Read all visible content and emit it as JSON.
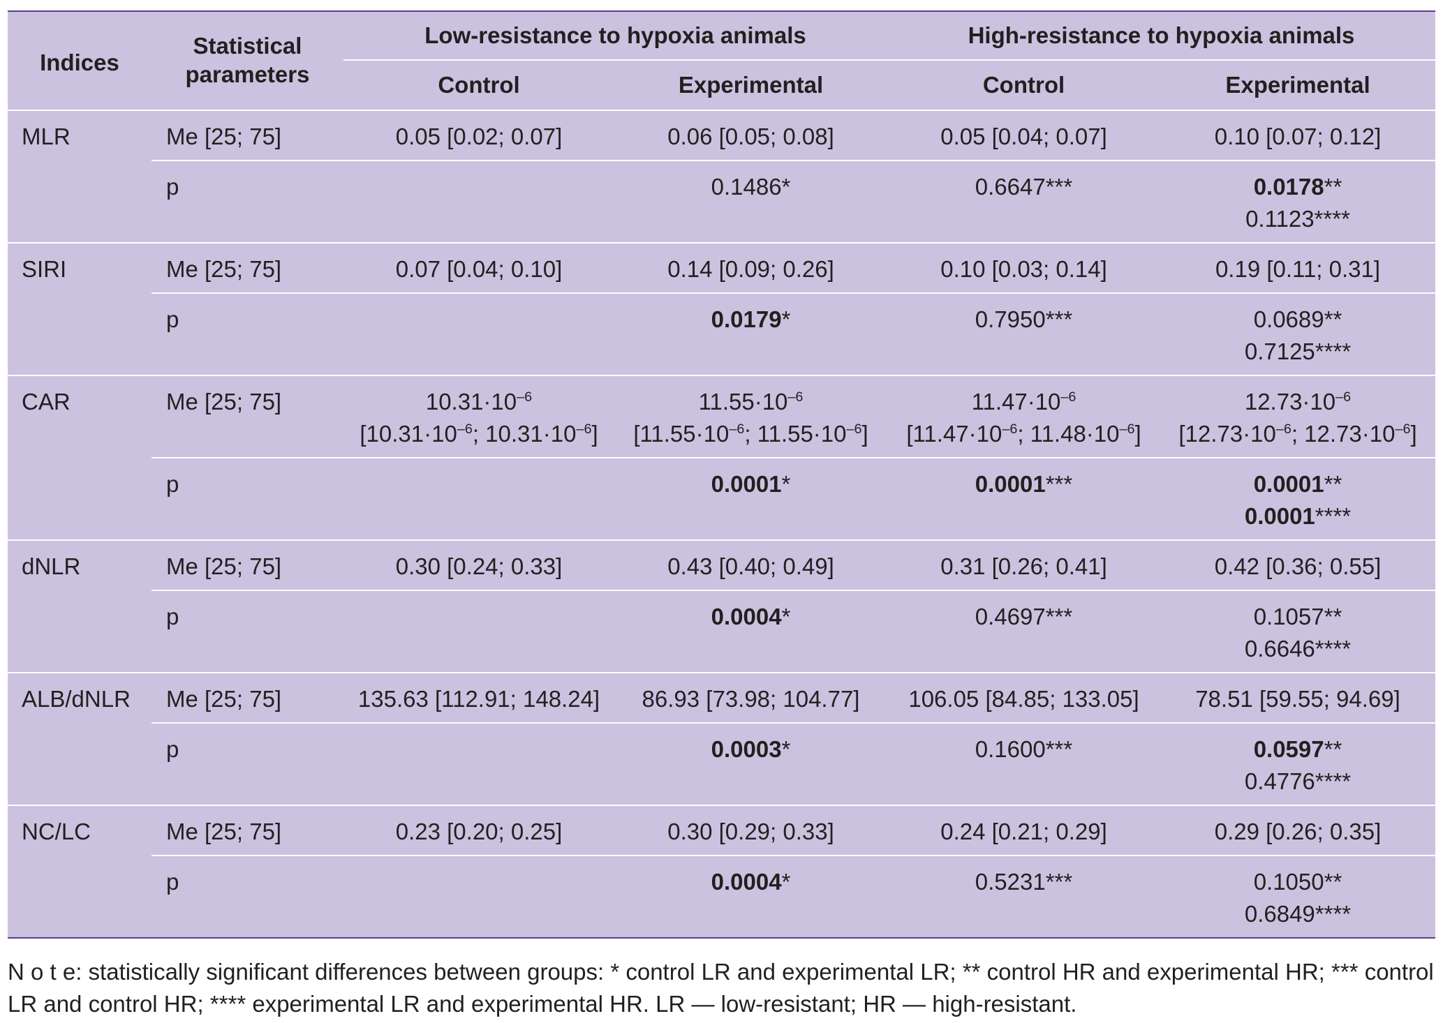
{
  "header": {
    "indices": "Indices",
    "statistical_parameters": "Statistical parameters",
    "low_group": "Low-resistance to hypoxia animals",
    "high_group": "High-resistance to hypoxia animals",
    "control": "Control",
    "experimental": "Experimental"
  },
  "rows": [
    {
      "index": "MLR",
      "me_label": "Me [25; 75]",
      "me": [
        "0.05 [0.02; 0.07]",
        "0.06 [0.05; 0.08]",
        "0.05 [0.04; 0.07]",
        "0.10 [0.07; 0.12]"
      ],
      "p_label": "p",
      "p": {
        "lr_exp": {
          "value": "0.1486",
          "mark": "*",
          "bold": false
        },
        "hr_ctrl": {
          "value": "0.6647",
          "mark": "***",
          "bold": false
        },
        "hr_exp_1": {
          "value": "0.0178",
          "mark": "**",
          "bold": true
        },
        "hr_exp_2": {
          "value": "0.1123",
          "mark": "****",
          "bold": false
        }
      }
    },
    {
      "index": "SIRI",
      "me_label": "Me [25; 75]",
      "me": [
        "0.07 [0.04; 0.10]",
        "0.14 [0.09; 0.26]",
        "0.10 [0.03; 0.14]",
        "0.19 [0.11; 0.31]"
      ],
      "p_label": "p",
      "p": {
        "lr_exp": {
          "value": "0.0179",
          "mark": "*",
          "bold": true
        },
        "hr_ctrl": {
          "value": "0.7950",
          "mark": "***",
          "bold": false
        },
        "hr_exp_1": {
          "value": "0.0689",
          "mark": "**",
          "bold": false
        },
        "hr_exp_2": {
          "value": "0.7125",
          "mark": "****",
          "bold": false
        }
      }
    },
    {
      "index": "CAR",
      "me_label": "Me [25; 75]",
      "me_car": [
        {
          "line1": "10.31·10",
          "exp1": "–6",
          "q_a": "[10.31·10",
          "q_a_exp": "–6",
          "q_b": "; 10.31·10",
          "q_b_exp": "–6",
          "q_end": "]"
        },
        {
          "line1": "11.55·10",
          "exp1": "–6",
          "q_a": "[11.55·10",
          "q_a_exp": "–6",
          "q_b": "; 11.55·10",
          "q_b_exp": "–6",
          "q_end": "]"
        },
        {
          "line1": "11.47·10",
          "exp1": "–6",
          "q_a": "[11.47·10",
          "q_a_exp": "–6",
          "q_b": "; 11.48·10",
          "q_b_exp": "–6",
          "q_end": "]"
        },
        {
          "line1": "12.73·10",
          "exp1": "–6",
          "q_a": "[12.73·10",
          "q_a_exp": "–6",
          "q_b": "; 12.73·10",
          "q_b_exp": "–6",
          "q_end": "]"
        }
      ],
      "p_label": "p",
      "p": {
        "lr_exp": {
          "value": "0.0001",
          "mark": "*",
          "bold": true
        },
        "hr_ctrl": {
          "value": "0.0001",
          "mark": "***",
          "bold": true
        },
        "hr_exp_1": {
          "value": "0.0001",
          "mark": "**",
          "bold": true
        },
        "hr_exp_2": {
          "value": "0.0001",
          "mark": "****",
          "bold": true
        }
      }
    },
    {
      "index": "dNLR",
      "me_label": "Me [25; 75]",
      "me": [
        "0.30 [0.24; 0.33]",
        "0.43 [0.40; 0.49]",
        "0.31 [0.26; 0.41]",
        "0.42 [0.36; 0.55]"
      ],
      "p_label": "p",
      "p": {
        "lr_exp": {
          "value": "0.0004",
          "mark": "*",
          "bold": true
        },
        "hr_ctrl": {
          "value": "0.4697",
          "mark": "***",
          "bold": false
        },
        "hr_exp_1": {
          "value": "0.1057",
          "mark": "**",
          "bold": false
        },
        "hr_exp_2": {
          "value": "0.6646",
          "mark": "****",
          "bold": false
        }
      }
    },
    {
      "index": "ALB/dNLR",
      "me_label": "Me [25; 75]",
      "me": [
        "135.63 [112.91; 148.24]",
        "86.93 [73.98; 104.77]",
        "106.05 [84.85; 133.05]",
        "78.51 [59.55; 94.69]"
      ],
      "p_label": "p",
      "p": {
        "lr_exp": {
          "value": "0.0003",
          "mark": "*",
          "bold": true
        },
        "hr_ctrl": {
          "value": "0.1600",
          "mark": "***",
          "bold": false
        },
        "hr_exp_1": {
          "value": "0.0597",
          "mark": "**",
          "bold": true
        },
        "hr_exp_2": {
          "value": "0.4776",
          "mark": "****",
          "bold": false
        }
      }
    },
    {
      "index": "NC/LC",
      "me_label": "Me [25; 75]",
      "me": [
        "0.23 [0.20; 0.25]",
        "0.30 [0.29; 0.33]",
        "0.24 [0.21; 0.29]",
        "0.29 [0.26; 0.35]"
      ],
      "p_label": "p",
      "p": {
        "lr_exp": {
          "value": "0.0004",
          "mark": "*",
          "bold": true
        },
        "hr_ctrl": {
          "value": "0.5231",
          "mark": "***",
          "bold": false
        },
        "hr_exp_1": {
          "value": "0.1050",
          "mark": "**",
          "bold": false
        },
        "hr_exp_2": {
          "value": "0.6849",
          "mark": "****",
          "bold": false
        }
      }
    }
  ],
  "note": {
    "label": "N o t e",
    "text": ": statistically significant differences between groups: * control LR and experimental LR; ** control HR and experimental HR; *** control LR and control HR; **** experimental LR and experimental HR. LR — low-resistant; HR — high-resistant."
  },
  "colors": {
    "table_bg": "#cbc2df",
    "rule": "#5b3c8c",
    "text": "#231f20"
  }
}
